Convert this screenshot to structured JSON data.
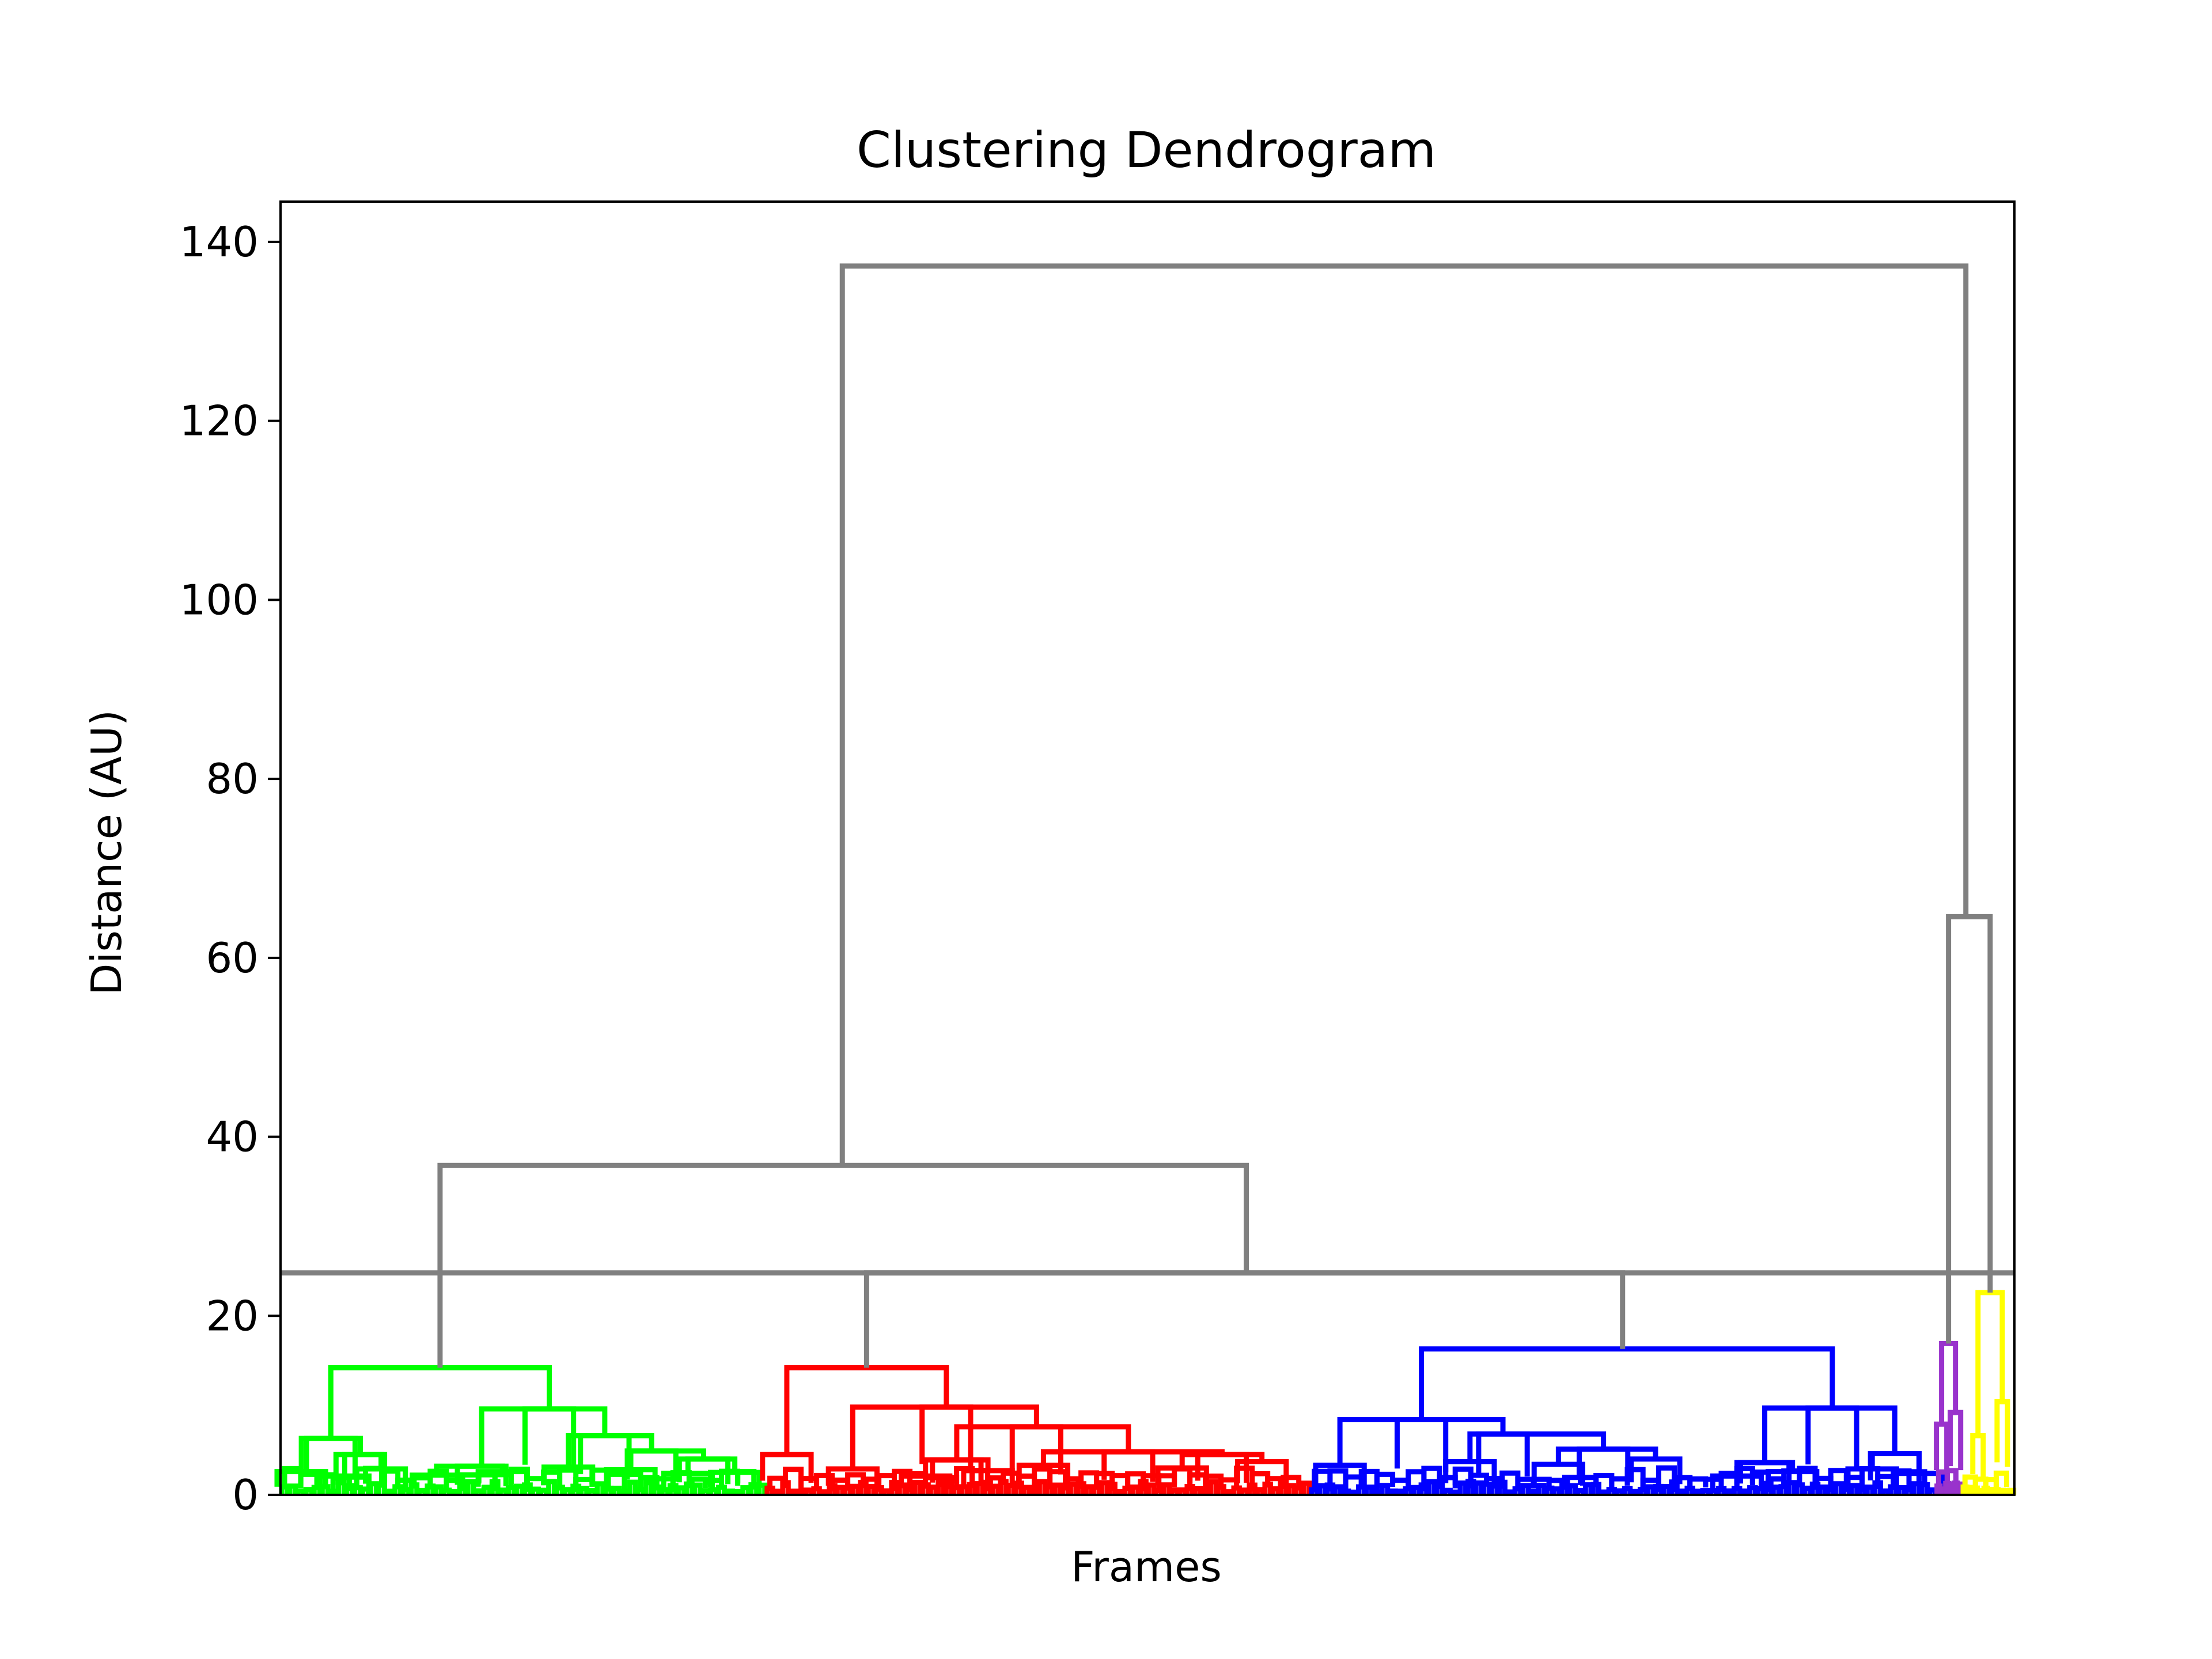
{
  "chart_data": {
    "type": "dendrogram",
    "title": "Clustering Dendrogram",
    "xlabel": "Frames",
    "ylabel": "Distance (AU)",
    "ylim": [
      0,
      144.5
    ],
    "yticks": [
      0,
      20,
      40,
      60,
      80,
      100,
      120,
      140
    ],
    "xlim": [
      0,
      1000
    ],
    "grid": false,
    "threshold": {
      "y": 24.8,
      "color": "#808080"
    },
    "colors": {
      "green": "#00ff00",
      "red": "#ff0000",
      "blue": "#0000ff",
      "purple": "#9933cc",
      "yellow": "#ffff00",
      "above": "#808080"
    },
    "clusters": [
      {
        "name": "green",
        "color": "#00ff00",
        "x_range": [
          0,
          280
        ],
        "leaf_density": 60,
        "top_link": {
          "height": 14.2,
          "left_x": 29,
          "right_x": 155,
          "left_height": 6.3,
          "right_height": 9.6
        },
        "branches": [
          [
            29,
            14.2,
            6.3
          ],
          [
            155,
            14.2,
            9.6
          ],
          [
            12,
            6.3,
            2.6
          ],
          [
            46,
            6.3,
            4.5
          ],
          [
            116,
            9.6,
            3.2
          ],
          [
            187,
            9.6,
            6.6
          ],
          [
            166,
            6.6,
            3.1
          ],
          [
            214,
            6.6,
            4.9
          ],
          [
            202,
            4.9,
            2.8
          ],
          [
            244,
            4.9,
            4.0
          ],
          [
            235,
            4.0,
            2.4
          ],
          [
            262,
            4.0,
            2.5
          ],
          [
            58,
            4.5,
            2.9
          ],
          [
            37,
            4.5,
            2.1
          ],
          [
            90,
            3.2,
            2.2
          ],
          [
            128,
            3.2,
            2.6
          ]
        ]
      },
      {
        "name": "red",
        "color": "#ff0000",
        "x_range": [
          280,
          594
        ],
        "leaf_density": 70,
        "top_link": {
          "height": 14.2,
          "left_x": 292,
          "right_x": 384,
          "left_height": 4.5,
          "right_height": 9.8
        },
        "branches": [
          [
            292,
            14.2,
            4.5
          ],
          [
            384,
            14.2,
            9.8
          ],
          [
            330,
            9.8,
            2.9
          ],
          [
            436,
            9.8,
            7.6
          ],
          [
            390,
            7.6,
            3.9
          ],
          [
            489,
            7.6,
            4.8
          ],
          [
            440,
            4.8,
            3.3
          ],
          [
            543,
            4.8,
            4.5
          ],
          [
            520,
            4.5,
            3.0
          ],
          [
            566,
            4.5,
            3.7
          ],
          [
            408,
            3.9,
            2.7
          ],
          [
            372,
            3.9,
            2.1
          ]
        ]
      },
      {
        "name": "blue",
        "color": "#0000ff",
        "x_range": [
          594,
          955
        ],
        "leaf_density": 80,
        "top_link": {
          "height": 16.3,
          "left_x": 658,
          "right_x": 895,
          "left_height": 8.4,
          "right_height": 9.7
        },
        "branches": [
          [
            658,
            16.3,
            8.4
          ],
          [
            895,
            16.3,
            9.7
          ],
          [
            611,
            8.4,
            3.3
          ],
          [
            705,
            8.4,
            6.8
          ],
          [
            686,
            6.8,
            3.7
          ],
          [
            763,
            6.8,
            5.1
          ],
          [
            737,
            5.1,
            3.4
          ],
          [
            793,
            5.1,
            4.0
          ],
          [
            856,
            9.7,
            3.6
          ],
          [
            931,
            9.7,
            4.6
          ],
          [
            918,
            4.6,
            2.9
          ],
          [
            945,
            4.6,
            2.4
          ],
          [
            872,
            3.6,
            2.6
          ],
          [
            840,
            3.6,
            2.1
          ]
        ]
      },
      {
        "name": "purple",
        "color": "#9933cc",
        "x_range": [
          955,
          970
        ],
        "leaf_density": 6,
        "top_link": {
          "height": 16.9,
          "left_x": 958,
          "right_x": 966,
          "left_height": 7.9,
          "right_height": 9.2
        },
        "branches": [
          [
            958,
            16.9,
            7.9
          ],
          [
            966,
            16.9,
            9.2
          ]
        ]
      },
      {
        "name": "yellow",
        "color": "#ffff00",
        "x_range": [
          970,
          1000
        ],
        "leaf_density": 10,
        "top_link": {
          "height": 22.6,
          "left_x": 979,
          "right_x": 993,
          "left_height": 6.6,
          "right_height": 10.4
        },
        "branches": [
          [
            979,
            22.6,
            6.6
          ],
          [
            993,
            22.6,
            10.4
          ]
        ]
      }
    ],
    "upper_links": [
      {
        "name": "green-red-blue-join",
        "left_x": 92,
        "right_x": 557,
        "height": 36.8,
        "left_height": 14.2,
        "right_height": 24.8
      },
      {
        "name": "red-blue-join",
        "left_x": 338,
        "right_x": 774,
        "height": 24.8,
        "left_height": 14.2,
        "right_height": 16.3
      },
      {
        "name": "purple-yellow-join",
        "left_x": 962,
        "right_x": 986,
        "height": 64.6,
        "left_height": 16.9,
        "right_height": 22.6
      },
      {
        "name": "root-join",
        "left_x": 324,
        "right_x": 972,
        "height": 137.3,
        "left_height": 36.8,
        "right_height": 64.6
      }
    ]
  }
}
